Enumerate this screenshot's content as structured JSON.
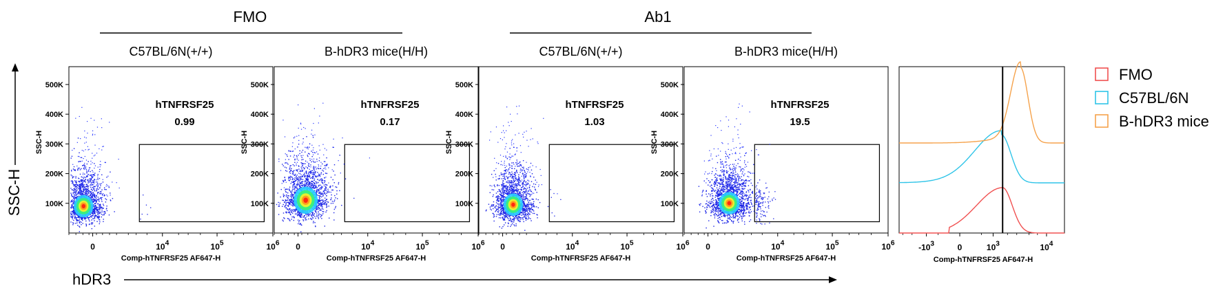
{
  "groups": [
    {
      "label": "FMO",
      "panels": [
        0,
        1
      ]
    },
    {
      "label": "Ab1",
      "panels": [
        2,
        3
      ]
    }
  ],
  "y_axis_label": "SSC-H",
  "x_axis_label": "hDR3",
  "chart_data": [
    {
      "type": "scatter",
      "subtitle": "C57BL/6N(+/+)",
      "gate_name": "hTNFRSF25",
      "gate_value": "0.99",
      "xlabel": "Comp-hTNFRSF25 AF647-H",
      "ylabel": "SSC-H",
      "x_ticks": [
        "0",
        "10^4",
        "10^5",
        "10^6"
      ],
      "y_ticks": [
        "100K",
        "200K",
        "300K",
        "400K",
        "500K"
      ],
      "ylim": [
        0,
        560000
      ],
      "density_center": [
        -300,
        95000
      ],
      "spread": "narrow"
    },
    {
      "type": "scatter",
      "subtitle": "B-hDR3 mice(H/H)",
      "gate_name": "hTNFRSF25",
      "gate_value": "0.17",
      "xlabel": "Comp-hTNFRSF25 AF647-H",
      "ylabel": "SSC-H",
      "x_ticks": [
        "0",
        "10^4",
        "10^5",
        "10^6"
      ],
      "y_ticks": [
        "100K",
        "200K",
        "300K",
        "400K",
        "500K"
      ],
      "ylim": [
        0,
        560000
      ],
      "density_center": [
        200,
        115000
      ],
      "spread": "wide"
    },
    {
      "type": "scatter",
      "subtitle": "C57BL/6N(+/+)",
      "gate_name": "hTNFRSF25",
      "gate_value": "1.03",
      "xlabel": "Comp-hTNFRSF25 AF647-H",
      "ylabel": "SSC-H",
      "x_ticks": [
        "0",
        "10^4",
        "10^5",
        "10^6"
      ],
      "y_ticks": [
        "100K",
        "200K",
        "300K",
        "400K",
        "500K"
      ],
      "ylim": [
        0,
        560000
      ],
      "density_center": [
        300,
        100000
      ],
      "spread": "narrow"
    },
    {
      "type": "scatter",
      "subtitle": "B-hDR3 mice(H/H)",
      "gate_name": "hTNFRSF25",
      "gate_value": "19.5",
      "xlabel": "Comp-hTNFRSF25 AF647-H",
      "ylabel": "SSC-H",
      "x_ticks": [
        "0",
        "10^4",
        "10^5",
        "10^6"
      ],
      "y_ticks": [
        "100K",
        "200K",
        "300K",
        "400K",
        "500K"
      ],
      "ylim": [
        0,
        560000
      ],
      "density_center": [
        800,
        105000
      ],
      "spread": "medium"
    },
    {
      "type": "area",
      "xlabel": "Comp-hTNFRSF25 AF647-H",
      "x_ticks": [
        "-10^3",
        "0",
        "10^3",
        "10^4"
      ],
      "legend_position": "right",
      "series": [
        {
          "name": "FMO",
          "color": "#f05050",
          "peak": 1600
        },
        {
          "name": "C57BL/6N",
          "color": "#2ec4e8",
          "peak": 1500
        },
        {
          "name": "B-hDR3 mice",
          "color": "#f5a24b",
          "peak": 3500
        }
      ],
      "marker_line_x": 1600
    }
  ]
}
